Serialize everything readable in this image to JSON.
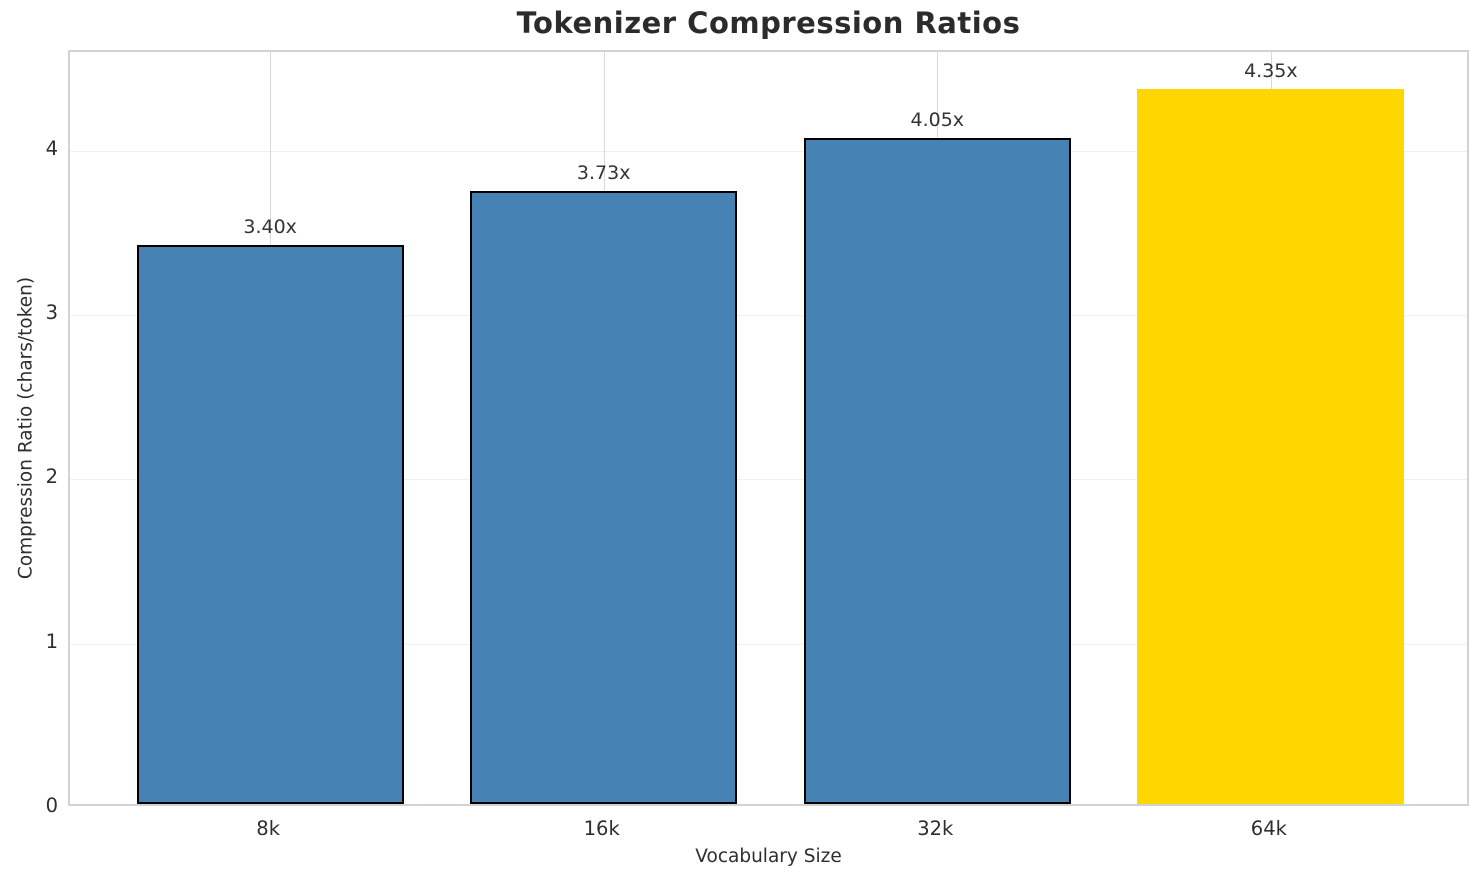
{
  "chart_data": {
    "type": "bar",
    "title": "Tokenizer Compression Ratios",
    "xlabel": "Vocabulary Size",
    "ylabel": "Compression Ratio (chars/token)",
    "categories": [
      "8k",
      "16k",
      "32k",
      "64k"
    ],
    "values": [
      3.4,
      3.73,
      4.05,
      4.35
    ],
    "bar_labels": [
      "3.40x",
      "3.73x",
      "4.05x",
      "4.35x"
    ],
    "bar_colors": [
      "#4682B4",
      "#4682B4",
      "#4682B4",
      "#FFD700"
    ],
    "bar_edge_colors": [
      "#000000",
      "#000000",
      "#000000",
      "none"
    ],
    "yticks": [
      0,
      1,
      2,
      3,
      4
    ],
    "ylim": [
      0,
      4.6
    ],
    "bar_width_fraction": 0.8,
    "grid": true,
    "legend_position": "none"
  },
  "colors": {
    "background": "#ffffff",
    "spine": "#d2d2d2",
    "grid_vertical": "#d9d9d9",
    "grid_horizontal": "#f0f0f0",
    "title_text": "#2b2b2b",
    "tick_text": "#2e2e2e",
    "bar_label_text": "#333333"
  }
}
